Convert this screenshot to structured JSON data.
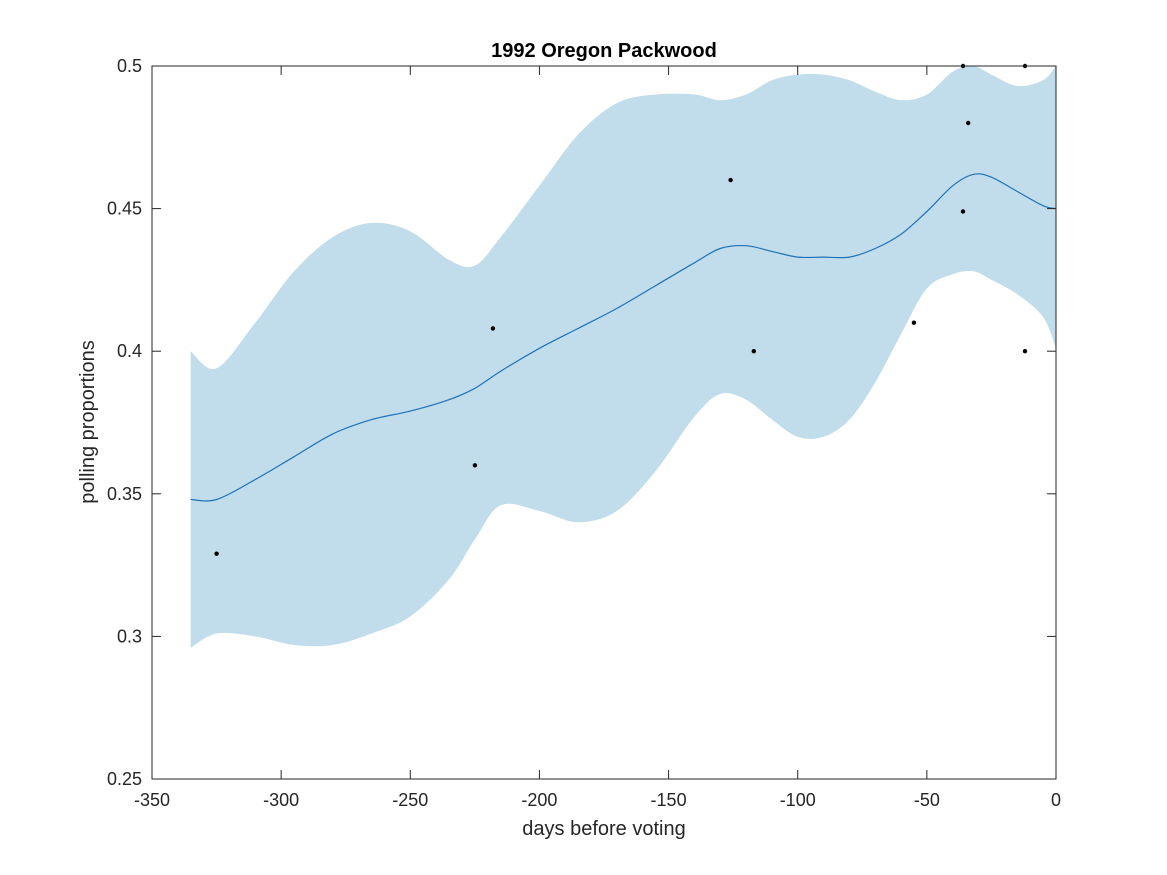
{
  "chart_data": {
    "type": "line",
    "title": "1992 Oregon Packwood",
    "xlabel": "days before voting",
    "ylabel": "polling proportions",
    "xlim": [
      -350,
      0
    ],
    "ylim": [
      0.25,
      0.5
    ],
    "xticks": [
      -350,
      -300,
      -250,
      -200,
      -150,
      -100,
      -50,
      0
    ],
    "yticks": [
      0.25,
      0.3,
      0.35,
      0.4,
      0.45,
      0.5
    ],
    "xtick_labels": [
      "-350",
      "-300",
      "-250",
      "-200",
      "-150",
      "-100",
      "-50",
      "0"
    ],
    "ytick_labels": [
      "0.25",
      "0.3",
      "0.35",
      "0.4",
      "0.45",
      "0.5"
    ],
    "grid": false,
    "colors": {
      "band": "#c1dcea",
      "line": "#1f72b8",
      "points": "#000000",
      "axes": "#262626"
    },
    "series": [
      {
        "type": "line",
        "x": [
          -335,
          -325,
          -310,
          -295,
          -280,
          -265,
          -250,
          -235,
          -225,
          -215,
          -200,
          -185,
          -170,
          -155,
          -140,
          -130,
          -120,
          -110,
          -100,
          -90,
          -80,
          -70,
          -60,
          -50,
          -40,
          -32,
          -25,
          -15,
          -5,
          0
        ],
        "y": [
          0.348,
          0.348,
          0.355,
          0.363,
          0.371,
          0.376,
          0.379,
          0.383,
          0.387,
          0.393,
          0.401,
          0.408,
          0.415,
          0.423,
          0.431,
          0.436,
          0.437,
          0.435,
          0.433,
          0.433,
          0.433,
          0.436,
          0.441,
          0.449,
          0.458,
          0.462,
          0.461,
          0.456,
          0.451,
          0.45
        ]
      },
      {
        "type": "band",
        "x": [
          -335,
          -325,
          -310,
          -295,
          -280,
          -265,
          -250,
          -235,
          -225,
          -215,
          -200,
          -185,
          -170,
          -155,
          -140,
          -130,
          -120,
          -110,
          -100,
          -90,
          -80,
          -70,
          -60,
          -50,
          -40,
          -32,
          -25,
          -15,
          -5,
          0
        ],
        "upper": [
          0.4,
          0.394,
          0.41,
          0.428,
          0.44,
          0.445,
          0.442,
          0.432,
          0.43,
          0.44,
          0.458,
          0.476,
          0.487,
          0.49,
          0.49,
          0.488,
          0.49,
          0.495,
          0.497,
          0.497,
          0.495,
          0.491,
          0.488,
          0.49,
          0.498,
          0.5,
          0.497,
          0.493,
          0.495,
          0.5
        ],
        "lower": [
          0.296,
          0.301,
          0.3,
          0.297,
          0.297,
          0.301,
          0.307,
          0.32,
          0.334,
          0.346,
          0.344,
          0.34,
          0.344,
          0.358,
          0.377,
          0.385,
          0.383,
          0.376,
          0.37,
          0.37,
          0.376,
          0.389,
          0.406,
          0.422,
          0.427,
          0.428,
          0.425,
          0.42,
          0.412,
          0.401
        ]
      },
      {
        "type": "scatter",
        "x": [
          -325,
          -225,
          -218,
          -126,
          -117,
          -55,
          -36,
          -36,
          -34,
          -12,
          -12
        ],
        "y": [
          0.329,
          0.36,
          0.408,
          0.46,
          0.4,
          0.41,
          0.449,
          0.5,
          0.48,
          0.4,
          0.5
        ]
      }
    ]
  }
}
